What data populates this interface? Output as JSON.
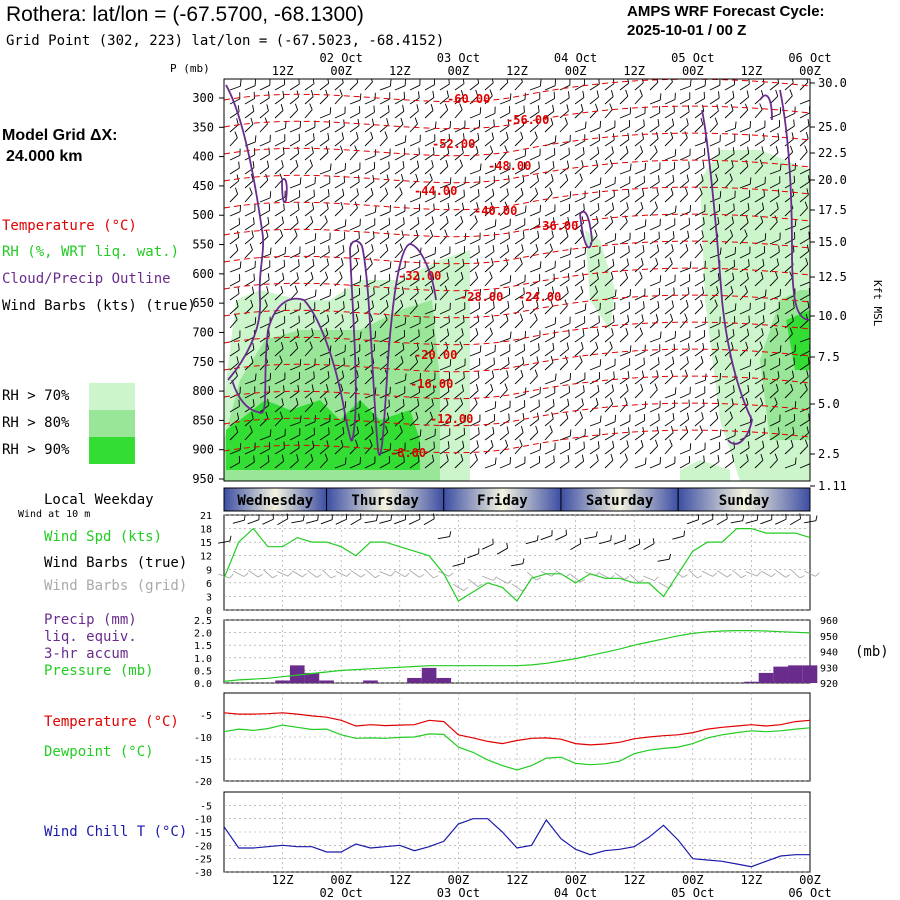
{
  "header": {
    "title": "Rothera:  lat/lon = (-67.5700, -68.1300)",
    "grid_point": "Grid Point (302, 223) lat/lon = (-67.5023, -68.4152)",
    "cycle_line1": "AMPS WRF Forecast Cycle:",
    "cycle_line2": "2025-10-01 / 00  Z"
  },
  "legend": {
    "model_grid_line1": "Model Grid ΔX:",
    "model_grid_line2": "24.000 km",
    "temperature": "Temperature (°C)",
    "rh": "RH (%, WRT liq. wat.)",
    "cloud": "Cloud/Precip Outline",
    "wind_barbs": "Wind Barbs (kts) (true)",
    "rh70": "RH > 70%",
    "rh80": "RH > 80%",
    "rh90": "RH > 90%",
    "local_weekday": "Local Weekday",
    "wind_at_10m": "Wind at 10 m",
    "wind_spd": "Wind Spd (kts)",
    "wind_barbs_true": "Wind Barbs (true)",
    "wind_barbs_grid": "Wind Barbs (grid)",
    "precip_line1": "Precip (mm)",
    "precip_line2": "liq. equiv.",
    "precip_line3": "3-hr accum",
    "pressure": "Pressure (mb)",
    "pressure_unit": "(mb)",
    "temp2": "Temperature (°C)",
    "dewpoint": "Dewpoint (°C)",
    "windchill": "Wind Chill T (°C)",
    "p_axis_title": "P (mb)",
    "kft_axis_title": "Kft MSL"
  },
  "colors": {
    "temperature": "#e00000",
    "rh": "#22cc22",
    "cloud": "#6a2c8c",
    "rh70": "#ccf5cc",
    "rh80": "#99e699",
    "rh90": "#33dd33",
    "grid_barbs": "#aaaaaa",
    "wind_chill": "#1a1aaa",
    "precip_bar": "#6a2c8c"
  },
  "chart_data": [
    {
      "type": "heatmap",
      "title": "",
      "x_ticks_top": [
        "12Z",
        "00Z",
        "12Z",
        "00Z",
        "12Z",
        "00Z",
        "12Z",
        "00Z",
        "12Z",
        "00Z"
      ],
      "date_labels": [
        "02 Oct",
        "03 Oct",
        "04 Oct",
        "05 Oct",
        "06 Oct"
      ],
      "xlim_hours": [
        0,
        120
      ],
      "pressure_ticks": [
        300,
        350,
        400,
        450,
        500,
        550,
        600,
        650,
        700,
        750,
        800,
        850,
        900,
        950
      ],
      "height_ticks_kft": [
        "30.0",
        "25.0",
        "22.5",
        "20.0",
        "17.5",
        "15.0",
        "12.5",
        "10.0",
        "7.5",
        "5.0",
        "2.5",
        "1.11"
      ],
      "temperature_contour_labels": [
        "-60.00",
        "-56.00",
        "-52.00",
        "-48.00",
        "-44.00",
        "-40.00",
        "-36.00",
        "-32.00",
        "-28.00",
        "-24.00",
        "-20.00",
        "-16.00",
        "-12.00",
        "-8.00"
      ],
      "weekdays": [
        "Wednesday",
        "Thursday",
        "Friday",
        "Saturday",
        "Sunday"
      ]
    },
    {
      "type": "line",
      "ylabel": "Wind Spd (kts)",
      "y_ticks": [
        0,
        3,
        6,
        9,
        12,
        15,
        18,
        21
      ],
      "ylim": [
        0,
        21
      ],
      "x_hours": [
        0,
        3,
        6,
        9,
        12,
        15,
        18,
        21,
        24,
        27,
        30,
        33,
        36,
        39,
        42,
        45,
        48,
        51,
        54,
        57,
        60,
        63,
        66,
        69,
        72,
        75,
        78,
        81,
        84,
        87,
        90,
        93,
        96,
        99,
        102,
        105,
        108,
        111,
        114,
        117,
        120
      ],
      "series": [
        {
          "name": "Wind Spd (kts)",
          "values": [
            7,
            15,
            18,
            14,
            14,
            16,
            15,
            15,
            14,
            12,
            15,
            15,
            14,
            13,
            12,
            8,
            2,
            4,
            6,
            5,
            2,
            7,
            8,
            8,
            6,
            8,
            7,
            7,
            6,
            6,
            3,
            8,
            13,
            15,
            15,
            18,
            18,
            17,
            17,
            17,
            16
          ]
        }
      ]
    },
    {
      "type": "bar",
      "ylabel": "Precip (mm)",
      "y_ticks": [
        "0.0",
        "0.5",
        "1.0",
        "1.5",
        "2.0",
        "2.5"
      ],
      "ylim": [
        0,
        2.5
      ],
      "y2_ticks": [
        920,
        930,
        940,
        950,
        960
      ],
      "y2lim": [
        920,
        960
      ],
      "x_hours": [
        0,
        3,
        6,
        9,
        12,
        15,
        18,
        21,
        24,
        27,
        30,
        33,
        36,
        39,
        42,
        45,
        48,
        51,
        54,
        57,
        60,
        63,
        66,
        69,
        72,
        75,
        78,
        81,
        84,
        87,
        90,
        93,
        96,
        99,
        102,
        105,
        108,
        111,
        114,
        117,
        120
      ],
      "precip": [
        0,
        0,
        0,
        0,
        0.1,
        0.7,
        0.4,
        0.1,
        0,
        0,
        0.1,
        0,
        0,
        0.2,
        0.6,
        0.2,
        0,
        0,
        0,
        0,
        0,
        0,
        0,
        0,
        0,
        0,
        0,
        0,
        0,
        0,
        0,
        0,
        0,
        0,
        0,
        0,
        0.05,
        0.4,
        0.65,
        0.7,
        0.7
      ],
      "series": [
        {
          "name": "Pressure (mb)",
          "values": [
            921,
            922,
            922.5,
            923,
            924,
            925,
            926,
            927,
            928,
            928.5,
            929,
            929.5,
            930,
            930.5,
            931,
            931,
            931,
            931,
            931,
            931,
            931,
            931.5,
            932.5,
            934,
            935.5,
            937.5,
            939.5,
            941.5,
            944,
            946,
            948,
            950,
            951.5,
            952.5,
            953,
            953.3,
            953.3,
            953,
            952.6,
            952.2,
            951.8
          ]
        }
      ]
    },
    {
      "type": "line",
      "y_ticks": [
        -20,
        -15,
        -10,
        -5
      ],
      "ylim": [
        -20,
        0
      ],
      "x_hours": [
        0,
        3,
        6,
        9,
        12,
        15,
        18,
        21,
        24,
        27,
        30,
        33,
        36,
        39,
        42,
        45,
        48,
        51,
        54,
        57,
        60,
        63,
        66,
        69,
        72,
        75,
        78,
        81,
        84,
        87,
        90,
        93,
        96,
        99,
        102,
        105,
        108,
        111,
        114,
        117,
        120
      ],
      "series": [
        {
          "name": "Temperature (°C)",
          "values": [
            -4.5,
            -4.8,
            -4.8,
            -4.7,
            -4.5,
            -4.8,
            -5.2,
            -5.5,
            -6.2,
            -7.5,
            -7.2,
            -7.4,
            -7.3,
            -7.2,
            -6.2,
            -6.5,
            -9.5,
            -10.2,
            -11,
            -11.5,
            -10.8,
            -10.3,
            -10.2,
            -10.5,
            -11.5,
            -11.8,
            -11.6,
            -11.2,
            -10.4,
            -10,
            -9.7,
            -9.5,
            -9,
            -8.2,
            -7.8,
            -7.5,
            -7.2,
            -7.5,
            -7.2,
            -6.5,
            -6.2
          ]
        },
        {
          "name": "Dewpoint (°C)",
          "values": [
            -8.8,
            -8.2,
            -8.5,
            -8.1,
            -7.3,
            -7.8,
            -8.3,
            -8.2,
            -9.5,
            -10.3,
            -10.2,
            -10.3,
            -10.1,
            -10,
            -9.3,
            -9.4,
            -12.3,
            -13.5,
            -15.2,
            -16.5,
            -17.5,
            -16.5,
            -14.8,
            -14.6,
            -16,
            -16.3,
            -16.1,
            -15.5,
            -13.8,
            -13,
            -12.6,
            -12.3,
            -11.5,
            -10.2,
            -9.5,
            -9,
            -8.6,
            -8.8,
            -8.6,
            -8.2,
            -7.9
          ]
        }
      ]
    },
    {
      "type": "line",
      "y_ticks": [
        -30,
        -25,
        -20,
        -15,
        -10,
        -5
      ],
      "ylim": [
        -30,
        0
      ],
      "x_hours": [
        0,
        3,
        6,
        9,
        12,
        15,
        18,
        21,
        24,
        27,
        30,
        33,
        36,
        39,
        42,
        45,
        48,
        51,
        54,
        57,
        60,
        63,
        66,
        69,
        72,
        75,
        78,
        81,
        84,
        87,
        90,
        93,
        96,
        99,
        102,
        105,
        108,
        111,
        114,
        117,
        120
      ],
      "series": [
        {
          "name": "Wind Chill T (°C)",
          "values": [
            -13,
            -21,
            -21,
            -20.5,
            -20,
            -20.5,
            -20.5,
            -22.5,
            -22.5,
            -19.5,
            -21,
            -20.5,
            -20,
            -22,
            -20.5,
            -18.5,
            -12,
            -10,
            -10,
            -15,
            -21,
            -20,
            -10.5,
            -17.5,
            -21.5,
            -23.5,
            -22,
            -21.5,
            -20.5,
            -17,
            -12.5,
            -18,
            -25,
            -25.5,
            -26,
            -27,
            -28,
            -26,
            -24,
            -23.5,
            -23.5
          ]
        }
      ]
    }
  ]
}
